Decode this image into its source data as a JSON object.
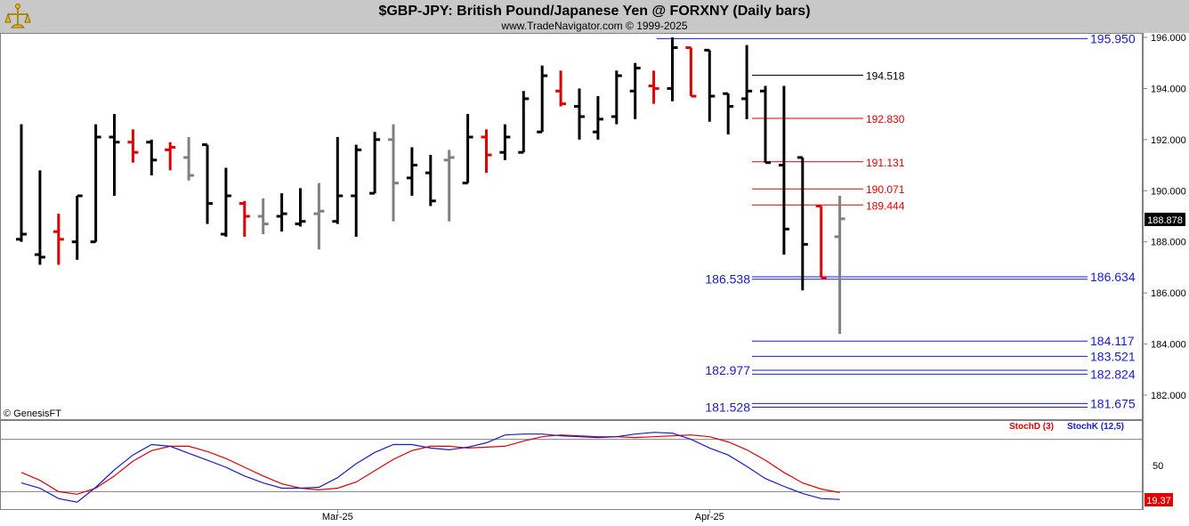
{
  "header": {
    "title": "$GBP-JPY:  British Pound/Japanese Yen @ FORXNY  (Daily bars)",
    "subtitle": "www.TradeNavigator.com © 1999-2025",
    "copyright": "© GenesisFT"
  },
  "colors": {
    "header_bg": "#c8c8c8",
    "up_bar": "#000000",
    "down_bar": "#e00000",
    "neutral_bar": "#808080",
    "blue_level": "#1a1acc",
    "red_level": "#e00000",
    "stoch_d": "#e00000",
    "stoch_k": "#1a1acc",
    "last_price_bg": "#000000",
    "stoch_tag_bg": "#e00000"
  },
  "chart_data": {
    "type": "ohlc",
    "price_axis": {
      "ylim": [
        180.8,
        196.6
      ],
      "ticks": [
        "196.000",
        "194.000",
        "192.000",
        "190.000",
        "188.000",
        "186.000",
        "184.000",
        "182.000"
      ],
      "tick_values": [
        196,
        194,
        192,
        190,
        188,
        186,
        184,
        182
      ]
    },
    "last_price": "188.878",
    "x_labels": [
      {
        "label": "Mar-25",
        "bar": 17
      },
      {
        "label": "Apr-25",
        "bar": 37
      }
    ],
    "bars": [
      {
        "o": 188.1,
        "h": 192.6,
        "l": 188.0,
        "c": 188.3,
        "color": "black"
      },
      {
        "o": 187.5,
        "h": 190.8,
        "l": 187.1,
        "c": 187.4,
        "color": "black"
      },
      {
        "o": 188.4,
        "h": 189.1,
        "l": 187.1,
        "c": 188.1,
        "color": "red"
      },
      {
        "o": 188.0,
        "h": 189.8,
        "l": 187.3,
        "c": 189.8,
        "color": "black"
      },
      {
        "o": 188.0,
        "h": 192.6,
        "l": 188.0,
        "c": 192.1,
        "color": "black"
      },
      {
        "o": 192.1,
        "h": 193.0,
        "l": 189.8,
        "c": 191.9,
        "color": "black"
      },
      {
        "o": 191.9,
        "h": 192.4,
        "l": 191.1,
        "c": 191.5,
        "color": "red"
      },
      {
        "o": 191.9,
        "h": 192.0,
        "l": 190.6,
        "c": 191.2,
        "color": "black"
      },
      {
        "o": 191.6,
        "h": 191.9,
        "l": 190.8,
        "c": 191.7,
        "color": "red"
      },
      {
        "o": 191.3,
        "h": 192.1,
        "l": 190.4,
        "c": 190.6,
        "color": "gray"
      },
      {
        "o": 191.8,
        "h": 191.8,
        "l": 188.7,
        "c": 189.5,
        "color": "black"
      },
      {
        "o": 188.3,
        "h": 190.9,
        "l": 188.2,
        "c": 189.8,
        "color": "black"
      },
      {
        "o": 189.5,
        "h": 189.6,
        "l": 188.2,
        "c": 189.0,
        "color": "red"
      },
      {
        "o": 189.0,
        "h": 189.7,
        "l": 188.3,
        "c": 188.7,
        "color": "gray"
      },
      {
        "o": 189.0,
        "h": 189.9,
        "l": 188.4,
        "c": 189.1,
        "color": "black"
      },
      {
        "o": 188.7,
        "h": 190.1,
        "l": 188.6,
        "c": 188.8,
        "color": "black"
      },
      {
        "o": 189.1,
        "h": 190.3,
        "l": 187.7,
        "c": 189.2,
        "color": "gray"
      },
      {
        "o": 188.8,
        "h": 192.1,
        "l": 188.7,
        "c": 189.8,
        "color": "black"
      },
      {
        "o": 189.8,
        "h": 191.8,
        "l": 188.2,
        "c": 191.6,
        "color": "black"
      },
      {
        "o": 189.9,
        "h": 192.3,
        "l": 189.9,
        "c": 192.0,
        "color": "black"
      },
      {
        "o": 192.0,
        "h": 192.6,
        "l": 188.8,
        "c": 190.3,
        "color": "gray"
      },
      {
        "o": 190.5,
        "h": 191.7,
        "l": 189.8,
        "c": 191.0,
        "color": "black"
      },
      {
        "o": 190.7,
        "h": 191.4,
        "l": 189.4,
        "c": 189.6,
        "color": "black"
      },
      {
        "o": 191.2,
        "h": 191.6,
        "l": 188.8,
        "c": 191.3,
        "color": "gray"
      },
      {
        "o": 190.3,
        "h": 193.0,
        "l": 190.3,
        "c": 192.1,
        "color": "black"
      },
      {
        "o": 192.1,
        "h": 192.4,
        "l": 190.7,
        "c": 191.4,
        "color": "red"
      },
      {
        "o": 191.5,
        "h": 192.6,
        "l": 191.2,
        "c": 192.1,
        "color": "black"
      },
      {
        "o": 191.5,
        "h": 193.9,
        "l": 191.5,
        "c": 193.6,
        "color": "black"
      },
      {
        "o": 192.3,
        "h": 194.9,
        "l": 192.3,
        "c": 194.5,
        "color": "black"
      },
      {
        "o": 193.9,
        "h": 194.7,
        "l": 193.3,
        "c": 193.4,
        "color": "red"
      },
      {
        "o": 193.3,
        "h": 194.0,
        "l": 192.0,
        "c": 192.9,
        "color": "black"
      },
      {
        "o": 192.3,
        "h": 193.7,
        "l": 192.0,
        "c": 192.8,
        "color": "black"
      },
      {
        "o": 192.9,
        "h": 194.7,
        "l": 192.6,
        "c": 194.5,
        "color": "black"
      },
      {
        "o": 193.9,
        "h": 195.0,
        "l": 192.8,
        "c": 194.8,
        "color": "black"
      },
      {
        "o": 194.1,
        "h": 194.7,
        "l": 193.4,
        "c": 194.0,
        "color": "red"
      },
      {
        "o": 194.0,
        "h": 196.0,
        "l": 193.5,
        "c": 195.6,
        "color": "black"
      },
      {
        "o": 195.6,
        "h": 195.6,
        "l": 193.7,
        "c": 193.7,
        "color": "red"
      },
      {
        "o": 195.5,
        "h": 195.5,
        "l": 192.7,
        "c": 193.7,
        "color": "black"
      },
      {
        "o": 193.8,
        "h": 193.8,
        "l": 192.2,
        "c": 193.3,
        "color": "black"
      },
      {
        "o": 193.6,
        "h": 195.7,
        "l": 192.8,
        "c": 193.9,
        "color": "black"
      },
      {
        "o": 193.9,
        "h": 194.1,
        "l": 191.1,
        "c": 191.1,
        "color": "black"
      },
      {
        "o": 191.0,
        "h": 194.1,
        "l": 187.5,
        "c": 188.5,
        "color": "black"
      },
      {
        "o": 191.3,
        "h": 191.3,
        "l": 186.1,
        "c": 187.9,
        "color": "black"
      },
      {
        "o": 189.4,
        "h": 189.4,
        "l": 186.6,
        "c": 186.6,
        "color": "red"
      },
      {
        "o": 188.2,
        "h": 189.8,
        "l": 184.4,
        "c": 188.9,
        "color": "gray"
      }
    ],
    "levels": [
      {
        "label": "195.950",
        "value": 195.95,
        "color": "blue",
        "span": "wide",
        "side": "right"
      },
      {
        "label": "194.518",
        "value": 194.518,
        "color": "black",
        "span": "short",
        "side": "mid"
      },
      {
        "label": "192.830",
        "value": 192.83,
        "color": "red",
        "span": "short",
        "side": "mid"
      },
      {
        "label": "191.131",
        "value": 191.131,
        "color": "red",
        "span": "short",
        "side": "mid"
      },
      {
        "label": "190.071",
        "value": 190.071,
        "color": "red",
        "span": "short",
        "side": "mid"
      },
      {
        "label": "189.444",
        "value": 189.444,
        "color": "red",
        "span": "short",
        "side": "mid"
      },
      {
        "label": "186.634",
        "value": 186.634,
        "color": "blue",
        "span": "full",
        "side": "right"
      },
      {
        "label": "186.538",
        "value": 186.538,
        "color": "blue",
        "span": "full",
        "side": "left"
      },
      {
        "label": "184.117",
        "value": 184.117,
        "color": "blue",
        "span": "full",
        "side": "right"
      },
      {
        "label": "183.521",
        "value": 183.521,
        "color": "blue",
        "span": "full",
        "side": "right"
      },
      {
        "label": "182.977",
        "value": 182.977,
        "color": "blue",
        "span": "full",
        "side": "left"
      },
      {
        "label": "182.824",
        "value": 182.824,
        "color": "blue",
        "span": "full",
        "side": "right"
      },
      {
        "label": "181.675",
        "value": 181.675,
        "color": "blue",
        "span": "full",
        "side": "right"
      },
      {
        "label": "181.528",
        "value": 181.528,
        "color": "blue",
        "span": "full",
        "side": "left"
      }
    ],
    "stochastic": {
      "ylim": [
        0,
        100
      ],
      "ticks": [
        "50"
      ],
      "tick_values": [
        50
      ],
      "guides": [
        80,
        20
      ],
      "legend": [
        {
          "name": "StochD (3)",
          "color": "red"
        },
        {
          "name": "StochK (12,5)",
          "color": "blue"
        }
      ],
      "last_value": "19.37",
      "series": [
        {
          "name": "StochD (3)",
          "values": [
            42,
            33,
            20,
            17,
            24,
            38,
            55,
            67,
            72,
            72,
            66,
            58,
            48,
            38,
            29,
            24,
            22,
            24,
            31,
            44,
            57,
            67,
            72,
            72,
            70,
            71,
            72,
            78,
            83,
            85,
            84,
            83,
            83,
            82,
            83,
            84,
            85,
            83,
            77,
            68,
            56,
            42,
            30,
            23,
            19
          ]
        },
        {
          "name": "StochK (12,5)",
          "values": [
            30,
            24,
            12,
            8,
            25,
            45,
            62,
            74,
            72,
            64,
            56,
            48,
            38,
            30,
            24,
            24,
            25,
            36,
            52,
            65,
            74,
            74,
            70,
            68,
            71,
            76,
            85,
            86,
            86,
            84,
            83,
            82,
            83,
            86,
            88,
            87,
            80,
            70,
            62,
            49,
            35,
            26,
            18,
            12,
            11
          ]
        }
      ]
    }
  }
}
